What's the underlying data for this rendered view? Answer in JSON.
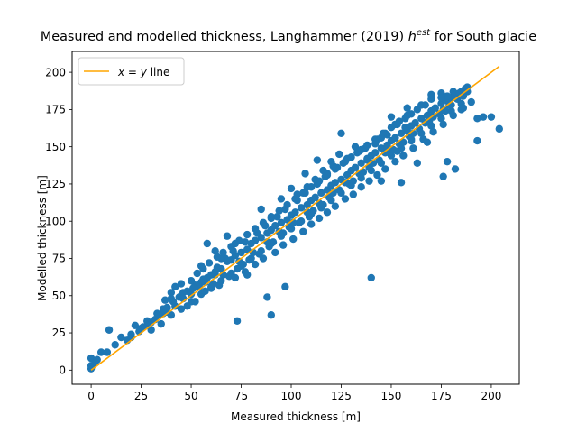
{
  "chart_data": {
    "type": "scatter",
    "title": {
      "prefix": "Measured and modelled thickness, Langhammer (2019) ",
      "math_base": "h",
      "math_sup": "est",
      "suffix": " for South glacie"
    },
    "xlabel": "Measured thickness [m]",
    "ylabel": "Modelled thickness [m]",
    "xlim": [
      -9.5,
      214
    ],
    "ylim": [
      -9.5,
      214
    ],
    "xticks": [
      0,
      25,
      50,
      75,
      100,
      125,
      150,
      175,
      200
    ],
    "yticks": [
      0,
      25,
      50,
      75,
      100,
      125,
      150,
      175,
      200
    ],
    "grid": false,
    "legend": {
      "placement": "top-left",
      "entries": [
        {
          "label": "x = y line",
          "color": "#ffa500"
        }
      ]
    },
    "reference_line": {
      "name": "x = y line",
      "x": [
        0,
        204
      ],
      "y": [
        0,
        204
      ],
      "color": "#ffa500"
    },
    "series": [
      {
        "color": "#1f77b4",
        "points": [
          [
            0,
            1
          ],
          [
            0,
            3
          ],
          [
            0,
            8
          ],
          [
            3,
            7
          ],
          [
            2,
            5
          ],
          [
            5,
            12
          ],
          [
            8,
            12
          ],
          [
            9,
            27
          ],
          [
            12,
            17
          ],
          [
            15,
            22
          ],
          [
            18,
            20
          ],
          [
            20,
            24
          ],
          [
            22,
            30
          ],
          [
            25,
            28
          ],
          [
            28,
            33
          ],
          [
            30,
            32
          ],
          [
            33,
            38
          ],
          [
            36,
            41
          ],
          [
            38,
            39
          ],
          [
            40,
            48
          ],
          [
            42,
            43
          ],
          [
            45,
            50
          ],
          [
            48,
            53
          ],
          [
            50,
            51
          ],
          [
            52,
            57
          ],
          [
            55,
            59
          ],
          [
            58,
            62
          ],
          [
            60,
            64
          ],
          [
            62,
            66
          ],
          [
            65,
            68
          ],
          [
            68,
            73
          ],
          [
            70,
            74
          ],
          [
            72,
            77
          ],
          [
            75,
            79
          ],
          [
            78,
            81
          ],
          [
            80,
            85
          ],
          [
            82,
            87
          ],
          [
            85,
            89
          ],
          [
            88,
            92
          ],
          [
            90,
            94
          ],
          [
            92,
            97
          ],
          [
            95,
            99
          ],
          [
            98,
            101
          ],
          [
            100,
            104
          ],
          [
            102,
            106
          ],
          [
            105,
            109
          ],
          [
            108,
            111
          ],
          [
            110,
            114
          ],
          [
            112,
            116
          ],
          [
            115,
            119
          ],
          [
            118,
            121
          ],
          [
            120,
            124
          ],
          [
            122,
            126
          ],
          [
            125,
            128
          ],
          [
            128,
            131
          ],
          [
            130,
            134
          ],
          [
            132,
            136
          ],
          [
            135,
            139
          ],
          [
            138,
            141
          ],
          [
            140,
            144
          ],
          [
            142,
            146
          ],
          [
            145,
            149
          ],
          [
            148,
            151
          ],
          [
            150,
            154
          ],
          [
            152,
            156
          ],
          [
            155,
            159
          ],
          [
            158,
            161
          ],
          [
            160,
            164
          ],
          [
            162,
            166
          ],
          [
            165,
            169
          ],
          [
            168,
            171
          ],
          [
            170,
            174
          ],
          [
            172,
            176
          ],
          [
            175,
            179
          ],
          [
            178,
            181
          ],
          [
            180,
            183
          ],
          [
            182,
            185
          ],
          [
            185,
            187
          ],
          [
            188,
            190
          ],
          [
            30,
            27
          ],
          [
            35,
            31
          ],
          [
            40,
            37
          ],
          [
            45,
            41
          ],
          [
            50,
            46
          ],
          [
            55,
            51
          ],
          [
            60,
            55
          ],
          [
            65,
            60
          ],
          [
            70,
            65
          ],
          [
            75,
            70
          ],
          [
            80,
            75
          ],
          [
            85,
            80
          ],
          [
            90,
            85
          ],
          [
            95,
            90
          ],
          [
            100,
            95
          ],
          [
            105,
            100
          ],
          [
            110,
            105
          ],
          [
            115,
            109
          ],
          [
            120,
            114
          ],
          [
            125,
            119
          ],
          [
            130,
            124
          ],
          [
            135,
            129
          ],
          [
            140,
            134
          ],
          [
            145,
            139
          ],
          [
            150,
            144
          ],
          [
            155,
            149
          ],
          [
            160,
            154
          ],
          [
            165,
            159
          ],
          [
            170,
            164
          ],
          [
            175,
            169
          ],
          [
            180,
            174
          ],
          [
            185,
            179
          ],
          [
            57,
            59
          ],
          [
            63,
            69
          ],
          [
            67,
            75
          ],
          [
            71,
            80
          ],
          [
            77,
            86
          ],
          [
            83,
            92
          ],
          [
            87,
            97
          ],
          [
            93,
            103
          ],
          [
            97,
            108
          ],
          [
            103,
            114
          ],
          [
            107,
            119
          ],
          [
            113,
            125
          ],
          [
            117,
            130
          ],
          [
            123,
            136
          ],
          [
            127,
            140
          ],
          [
            133,
            146
          ],
          [
            137,
            149
          ],
          [
            143,
            155
          ],
          [
            147,
            159
          ],
          [
            153,
            165
          ],
          [
            157,
            169
          ],
          [
            163,
            175
          ],
          [
            167,
            178
          ],
          [
            44,
            49
          ],
          [
            48,
            43
          ],
          [
            52,
            46
          ],
          [
            56,
            61
          ],
          [
            61,
            58
          ],
          [
            64,
            57
          ],
          [
            69,
            63
          ],
          [
            73,
            68
          ],
          [
            76,
            71
          ],
          [
            79,
            74
          ],
          [
            84,
            78
          ],
          [
            89,
            83
          ],
          [
            91,
            86
          ],
          [
            96,
            92
          ],
          [
            99,
            96
          ],
          [
            104,
            99
          ],
          [
            109,
            103
          ],
          [
            111,
            107
          ],
          [
            116,
            111
          ],
          [
            119,
            116
          ],
          [
            124,
            121
          ],
          [
            129,
            125
          ],
          [
            131,
            127
          ],
          [
            136,
            133
          ],
          [
            139,
            136
          ],
          [
            144,
            141
          ],
          [
            149,
            146
          ],
          [
            151,
            148
          ],
          [
            156,
            153
          ],
          [
            159,
            157
          ],
          [
            164,
            162
          ],
          [
            169,
            167
          ],
          [
            171,
            170
          ],
          [
            176,
            175
          ],
          [
            179,
            178
          ],
          [
            73,
            33
          ],
          [
            90,
            37
          ],
          [
            97,
            56
          ],
          [
            78,
            64
          ],
          [
            60,
            56
          ],
          [
            88,
            49
          ],
          [
            140,
            62
          ],
          [
            160,
            155
          ],
          [
            163,
            139
          ],
          [
            155,
            126
          ],
          [
            125,
            159
          ],
          [
            150,
            170
          ],
          [
            145,
            127
          ],
          [
            138,
            142
          ],
          [
            168,
            153
          ],
          [
            158,
            176
          ],
          [
            180,
            178
          ],
          [
            185,
            175
          ],
          [
            190,
            180
          ],
          [
            193,
            169
          ],
          [
            196,
            170
          ],
          [
            200,
            170
          ],
          [
            204,
            162
          ],
          [
            193,
            154
          ],
          [
            178,
            140
          ],
          [
            176,
            130
          ],
          [
            182,
            135
          ],
          [
            55,
            70
          ],
          [
            58,
            85
          ],
          [
            62,
            80
          ],
          [
            65,
            75
          ],
          [
            68,
            90
          ],
          [
            72,
            85
          ],
          [
            90,
            102
          ],
          [
            85,
            108
          ],
          [
            95,
            115
          ],
          [
            100,
            122
          ],
          [
            103,
            118
          ],
          [
            108,
            123
          ],
          [
            112,
            128
          ],
          [
            118,
            132
          ],
          [
            120,
            140
          ],
          [
            128,
            142
          ],
          [
            132,
            150
          ],
          [
            135,
            148
          ],
          [
            142,
            152
          ],
          [
            148,
            158
          ],
          [
            152,
            165
          ],
          [
            160,
            172
          ],
          [
            165,
            178
          ],
          [
            170,
            182
          ],
          [
            175,
            186
          ],
          [
            178,
            184
          ],
          [
            181,
            187
          ],
          [
            184,
            186
          ],
          [
            187,
            189
          ],
          [
            72,
            62
          ],
          [
            77,
            66
          ],
          [
            82,
            71
          ],
          [
            86,
            75
          ],
          [
            92,
            79
          ],
          [
            96,
            84
          ],
          [
            101,
            88
          ],
          [
            106,
            93
          ],
          [
            110,
            98
          ],
          [
            114,
            102
          ],
          [
            118,
            106
          ],
          [
            122,
            110
          ],
          [
            127,
            115
          ],
          [
            131,
            118
          ],
          [
            135,
            123
          ],
          [
            139,
            127
          ],
          [
            143,
            131
          ],
          [
            147,
            135
          ],
          [
            152,
            140
          ],
          [
            156,
            144
          ],
          [
            161,
            149
          ],
          [
            166,
            155
          ],
          [
            171,
            160
          ],
          [
            176,
            165
          ],
          [
            181,
            171
          ],
          [
            186,
            176
          ],
          [
            40,
            52
          ],
          [
            42,
            56
          ],
          [
            45,
            58
          ],
          [
            50,
            60
          ],
          [
            53,
            65
          ],
          [
            56,
            68
          ],
          [
            59,
            72
          ],
          [
            63,
            76
          ],
          [
            66,
            79
          ],
          [
            70,
            83
          ],
          [
            74,
            87
          ],
          [
            78,
            91
          ],
          [
            82,
            95
          ],
          [
            86,
            99
          ],
          [
            90,
            103
          ],
          [
            94,
            107
          ],
          [
            98,
            111
          ],
          [
            102,
            115
          ],
          [
            106,
            119
          ],
          [
            110,
            123
          ],
          [
            114,
            127
          ],
          [
            118,
            131
          ],
          [
            122,
            135
          ],
          [
            126,
            139
          ],
          [
            130,
            143
          ],
          [
            134,
            147
          ],
          [
            138,
            151
          ],
          [
            142,
            155
          ],
          [
            146,
            159
          ],
          [
            150,
            163
          ],
          [
            154,
            167
          ],
          [
            158,
            171
          ],
          [
            20,
            22
          ],
          [
            24,
            26
          ],
          [
            28,
            30
          ],
          [
            32,
            34
          ],
          [
            36,
            38
          ],
          [
            26,
            29
          ],
          [
            34,
            37
          ],
          [
            38,
            42
          ],
          [
            46,
            48
          ],
          [
            54,
            56
          ],
          [
            62,
            64
          ],
          [
            37,
            47
          ],
          [
            41,
            46
          ],
          [
            46,
            52
          ],
          [
            51,
            55
          ],
          [
            57,
            53
          ],
          [
            66,
            64
          ],
          [
            74,
            73
          ],
          [
            81,
            79
          ],
          [
            88,
            86
          ],
          [
            94,
            93
          ],
          [
            101,
            99
          ],
          [
            108,
            106
          ],
          [
            114,
            112
          ],
          [
            121,
            119
          ],
          [
            127,
            126
          ],
          [
            134,
            132
          ],
          [
            141,
            139
          ],
          [
            147,
            146
          ],
          [
            154,
            152
          ],
          [
            161,
            159
          ],
          [
            167,
            166
          ],
          [
            174,
            172
          ],
          [
            121,
            137
          ],
          [
            124,
            145
          ],
          [
            116,
            134
          ],
          [
            113,
            141
          ],
          [
            107,
            132
          ],
          [
            170,
            185
          ],
          [
            175,
            183
          ],
          [
            177,
            174
          ],
          [
            183,
            182
          ],
          [
            186,
            184
          ],
          [
            188,
            187
          ],
          [
            145,
            156
          ],
          [
            148,
            150
          ],
          [
            153,
            147
          ],
          [
            157,
            163
          ]
        ]
      }
    ]
  }
}
